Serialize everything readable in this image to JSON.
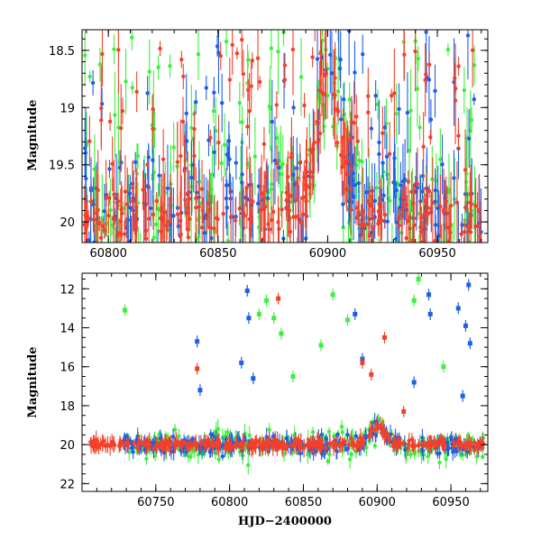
{
  "colors": {
    "green": "#3ef03e",
    "blue": "#1f5fe6",
    "red": "#f4402a",
    "axis": "#000000"
  },
  "chart_data": [
    {
      "type": "scatter",
      "title": "",
      "xlabel": "",
      "ylabel": "Magnitude",
      "xlim": [
        60788,
        60973
      ],
      "ylim": [
        20.18,
        18.32
      ],
      "inverted_y": true,
      "xticks": [
        60800,
        60850,
        60900,
        60950
      ],
      "xtick_labels": [
        "60800",
        "60850",
        "60900",
        "60950"
      ],
      "yticks": [
        18.5,
        19,
        19.5,
        20
      ],
      "ytick_labels": [
        "18.5",
        "19",
        "19.5",
        "20"
      ],
      "series": [
        {
          "name": "green",
          "color": "#3ef03e",
          "baseline": 19.9,
          "scatter": 0.7,
          "points": 260
        },
        {
          "name": "blue",
          "color": "#1f5fe6",
          "baseline": 19.9,
          "scatter": 0.6,
          "points": 260
        },
        {
          "name": "red",
          "color": "#f4402a",
          "baseline": 19.95,
          "scatter": 0.25,
          "points": 320
        }
      ],
      "feature": {
        "description": "brightening peak",
        "x_center": 60900,
        "peak_mag": 18.6
      }
    },
    {
      "type": "scatter",
      "title": "",
      "xlabel": "HJD−2400000",
      "ylabel": "Magnitude",
      "xlim": [
        60700,
        60975
      ],
      "ylim": [
        22.4,
        11.2
      ],
      "inverted_y": true,
      "xticks": [
        60750,
        60800,
        60850,
        60900,
        60950
      ],
      "xtick_labels": [
        "60750",
        "60800",
        "60850",
        "60900",
        "60950"
      ],
      "yticks": [
        12,
        14,
        16,
        18,
        20,
        22
      ],
      "ytick_labels": [
        "12",
        "14",
        "16",
        "18",
        "20",
        "22"
      ],
      "series": [
        {
          "name": "green",
          "color": "#3ef03e",
          "baseline": 20.0,
          "scatter": 0.9,
          "points": 300
        },
        {
          "name": "blue",
          "color": "#1f5fe6",
          "baseline": 20.0,
          "scatter": 0.6,
          "points": 300
        },
        {
          "name": "red",
          "color": "#f4402a",
          "baseline": 20.0,
          "scatter": 0.3,
          "points": 360
        }
      ],
      "outliers": [
        {
          "series": "green",
          "x": 60729,
          "y": 13.1
        },
        {
          "series": "green",
          "x": 60820,
          "y": 13.3
        },
        {
          "series": "green",
          "x": 60825,
          "y": 12.6
        },
        {
          "series": "green",
          "x": 60830,
          "y": 13.5
        },
        {
          "series": "green",
          "x": 60835,
          "y": 14.3
        },
        {
          "series": "green",
          "x": 60843,
          "y": 16.5
        },
        {
          "series": "green",
          "x": 60862,
          "y": 14.9
        },
        {
          "series": "green",
          "x": 60870,
          "y": 12.3
        },
        {
          "series": "green",
          "x": 60880,
          "y": 13.6
        },
        {
          "series": "green",
          "x": 60925,
          "y": 12.6
        },
        {
          "series": "green",
          "x": 60928,
          "y": 11.5
        },
        {
          "series": "green",
          "x": 60945,
          "y": 16.0
        },
        {
          "series": "blue",
          "x": 60778,
          "y": 14.7
        },
        {
          "series": "blue",
          "x": 60780,
          "y": 17.2
        },
        {
          "series": "blue",
          "x": 60808,
          "y": 15.8
        },
        {
          "series": "blue",
          "x": 60812,
          "y": 12.1
        },
        {
          "series": "blue",
          "x": 60813,
          "y": 13.5
        },
        {
          "series": "blue",
          "x": 60816,
          "y": 16.6
        },
        {
          "series": "blue",
          "x": 60885,
          "y": 13.3
        },
        {
          "series": "blue",
          "x": 60890,
          "y": 15.6
        },
        {
          "series": "blue",
          "x": 60925,
          "y": 16.8
        },
        {
          "series": "blue",
          "x": 60935,
          "y": 12.3
        },
        {
          "series": "blue",
          "x": 60936,
          "y": 13.3
        },
        {
          "series": "blue",
          "x": 60955,
          "y": 13.0
        },
        {
          "series": "blue",
          "x": 60960,
          "y": 13.9
        },
        {
          "series": "blue",
          "x": 60962,
          "y": 11.8
        },
        {
          "series": "blue",
          "x": 60963,
          "y": 14.8
        },
        {
          "series": "blue",
          "x": 60958,
          "y": 17.5
        },
        {
          "series": "red",
          "x": 60778,
          "y": 16.1
        },
        {
          "series": "red",
          "x": 60833,
          "y": 12.5
        },
        {
          "series": "red",
          "x": 60890,
          "y": 15.8
        },
        {
          "series": "red",
          "x": 60905,
          "y": 14.5
        },
        {
          "series": "red",
          "x": 60896,
          "y": 16.4
        },
        {
          "series": "red",
          "x": 60918,
          "y": 18.3
        }
      ],
      "feature": {
        "description": "brightening peak",
        "x_center": 60900,
        "peak_mag": 19.0
      }
    }
  ]
}
